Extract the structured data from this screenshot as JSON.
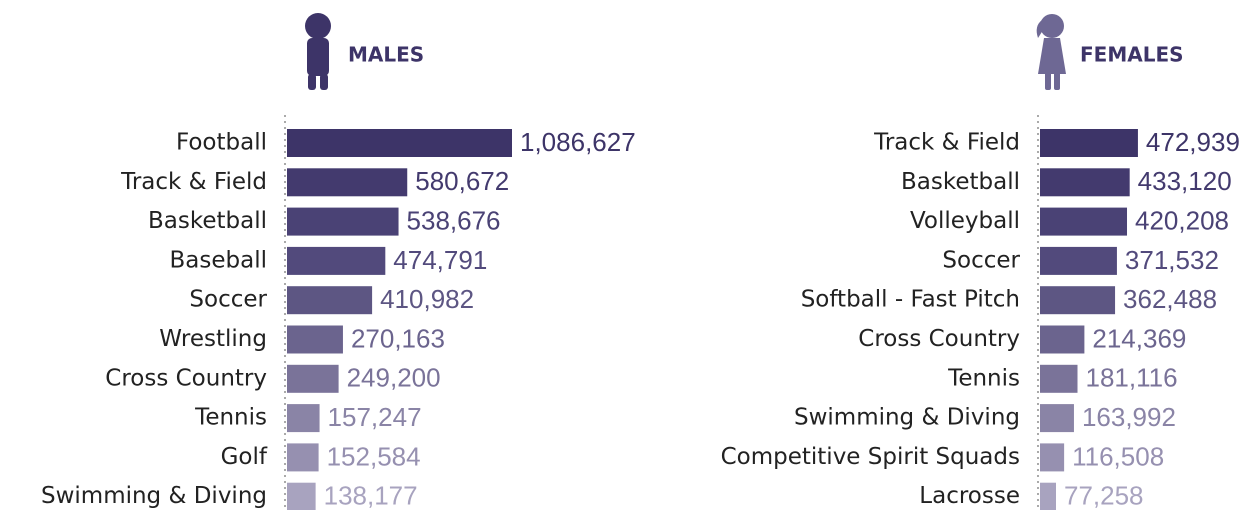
{
  "chart_data": [
    {
      "type": "bar",
      "orientation": "horizontal",
      "title": "MALES",
      "categories": [
        "Football",
        "Track & Field",
        "Basketball",
        "Baseball",
        "Soccer",
        "Wrestling",
        "Cross Country",
        "Tennis",
        "Golf",
        "Swimming & Diving"
      ],
      "values": [
        1086627,
        580672,
        538676,
        474791,
        410982,
        270163,
        249200,
        157247,
        152584,
        138177
      ],
      "value_labels": [
        "1,086,627",
        "580,672",
        "538,676",
        "474,791",
        "410,982",
        "270,163",
        "249,200",
        "157,247",
        "152,584",
        "138,177"
      ],
      "colors": [
        "#3d3468",
        "#433a6e",
        "#4a4275",
        "#524a7c",
        "#5d5683",
        "#6b648e",
        "#7a7399",
        "#8a84a6",
        "#9690b0",
        "#a8a3bf"
      ]
    },
    {
      "type": "bar",
      "orientation": "horizontal",
      "title": "FEMALES",
      "categories": [
        "Track & Field",
        "Basketball",
        "Volleyball",
        "Soccer",
        "Softball - Fast Pitch",
        "Cross Country",
        "Tennis",
        "Swimming & Diving",
        "Competitive Spirit Squads",
        "Lacrosse"
      ],
      "values": [
        472939,
        433120,
        420208,
        371532,
        362488,
        214369,
        181116,
        163992,
        116508,
        77258
      ],
      "value_labels": [
        "472,939",
        "433,120",
        "420,208",
        "371,532",
        "362,488",
        "214,369",
        "181,116",
        "163,992",
        "116,508",
        "77,258"
      ],
      "colors": [
        "#3d3468",
        "#433a6e",
        "#4a4275",
        "#524a7c",
        "#5d5683",
        "#6b648e",
        "#7a7399",
        "#8a84a6",
        "#9690b0",
        "#a8a3bf"
      ]
    }
  ]
}
